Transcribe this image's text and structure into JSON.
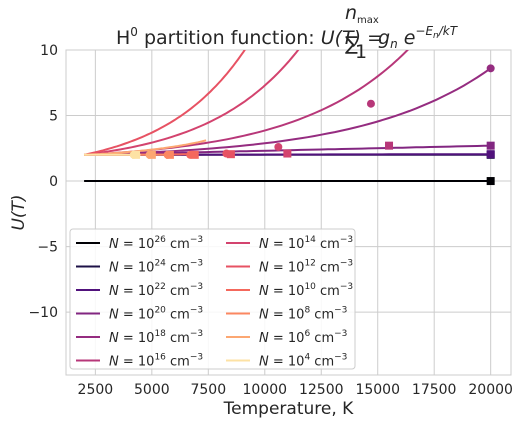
{
  "chart_data": {
    "type": "line",
    "title": "H⁰ partition function: U(T) = Σ₁^{n_max} gₙ e^{−Eₙ/kT}",
    "title_parts": {
      "prefix": "H",
      "sup": "0",
      "mid": " partition function: ",
      "lhs": "U(T) =",
      "sum": "∑",
      "sum_upper": "n",
      "sum_upper_sub": "max",
      "sum_lower": "1",
      "term": "g",
      "term_sub": "n",
      "exp_base": "e",
      "exp": "−E",
      "exp_sub": "n",
      "exp_tail": "/kT"
    },
    "xlabel": "Temperature, K",
    "ylabel": "U(T)",
    "xlim": [
      1200,
      20900
    ],
    "ylim": [
      -14.8,
      10
    ],
    "xticks": [
      2500,
      5000,
      7500,
      10000,
      12500,
      15000,
      17500,
      20000
    ],
    "yticks": [
      -10,
      -5,
      0,
      5,
      10
    ],
    "grid": true,
    "legend_position": "lower-left",
    "legend_columns": 2,
    "series": [
      {
        "name": "N = 10^26 cm^-3",
        "base": "N = 10",
        "exp": "26",
        "unit": " cm",
        "unit_exp": "−3",
        "color": "#000004",
        "x": [
          2000,
          20000
        ],
        "y": [
          0,
          0
        ],
        "marker": "square",
        "marker_x": 20000,
        "marker_y": 0,
        "end_marker": "square"
      },
      {
        "name": "N = 10^24 cm^-3",
        "base": "N = 10",
        "exp": "24",
        "unit": " cm",
        "unit_exp": "−3",
        "color": "#1d1147",
        "x": [
          2000,
          20000
        ],
        "y": [
          2.0,
          2.0
        ],
        "end_marker": "square",
        "marker_x": 20000,
        "marker_y": 2.0
      },
      {
        "name": "N = 10^22 cm^-3",
        "base": "N = 10",
        "exp": "22",
        "unit": " cm",
        "unit_exp": "−3",
        "color": "#51127c",
        "x": [
          2000,
          20000
        ],
        "y": [
          2.0,
          2.05
        ],
        "end_marker": "square",
        "marker_x": 20000,
        "marker_y": 2.05
      },
      {
        "name": "N = 10^20 cm^-3",
        "base": "N = 10",
        "exp": "20",
        "unit": " cm",
        "unit_exp": "−3",
        "color": "#822681",
        "x": [
          2000,
          20000
        ],
        "y": [
          2.0,
          2.7
        ],
        "end_marker": "square",
        "marker_x": 20000,
        "marker_y": 2.7
      },
      {
        "name": "N = 10^18 cm^-3",
        "base": "N = 10",
        "exp": "18",
        "unit": " cm",
        "unit_exp": "−3",
        "color": "#952c80",
        "x": [
          2000,
          20000
        ],
        "y": [
          2.0,
          8.6
        ],
        "end_marker": "circle",
        "marker_x": 20000,
        "marker_y": 8.6,
        "grow": 3.2
      },
      {
        "name": "N = 10^16 cm^-3",
        "base": "N = 10",
        "exp": "16",
        "unit": " cm",
        "unit_exp": "−3",
        "color": "#b73779",
        "x": [
          2000,
          16600
        ],
        "y": [
          2.0,
          10.5
        ],
        "square_x": 15500,
        "square_y": 2.7,
        "circle_x": 14700,
        "circle_y": 5.9,
        "grow": 3.0
      },
      {
        "name": "N = 10^14 cm^-3",
        "base": "N = 10",
        "exp": "14",
        "unit": " cm",
        "unit_exp": "−3",
        "color": "#d3436e",
        "x": [
          2000,
          11700
        ],
        "y": [
          2.0,
          10.5
        ],
        "square_x": 11000,
        "square_y": 2.1,
        "circle_x": 10600,
        "circle_y": 2.6,
        "grow": 2.4
      },
      {
        "name": "N = 10^12 cm^-3",
        "base": "N = 10",
        "exp": "12",
        "unit": " cm",
        "unit_exp": "−3",
        "color": "#e75263",
        "x": [
          2000,
          9300
        ],
        "y": [
          2.0,
          10.5
        ],
        "square_x": 8500,
        "square_y": 2.05,
        "circle_x": 8300,
        "circle_y": 2.1,
        "grow": 2.0
      },
      {
        "name": "N = 10^10 cm^-3",
        "base": "N = 10",
        "exp": "10",
        "unit": " cm",
        "unit_exp": "−3",
        "color": "#f4685c",
        "x": [
          2000,
          7000
        ],
        "y": [
          2.0,
          2.05
        ],
        "square_x": 6900,
        "square_y": 2.0,
        "circle_x": 6700,
        "circle_y": 2.0,
        "grow": 1.5
      },
      {
        "name": "N = 10^8 cm^-3",
        "base": "N = 10",
        "exp": "8",
        "unit": " cm",
        "unit_exp": "−3",
        "color": "#fb8761",
        "x": [
          2000,
          5900
        ],
        "y": [
          2.0,
          2.0
        ],
        "square_x": 5800,
        "square_y": 2.0,
        "circle_x": 5700,
        "circle_y": 2.0
      },
      {
        "name": "N = 10^6 cm^-3",
        "base": "N = 10",
        "exp": "6",
        "unit": " cm",
        "unit_exp": "−3",
        "color": "#fca772",
        "x": [
          2000,
          7400
        ],
        "y": [
          2.0,
          3.1
        ],
        "square_x": 5000,
        "square_y": 2.0,
        "circle_x": 4900,
        "circle_y": 2.0,
        "grow": 1.6
      },
      {
        "name": "N = 10^4 cm^-3",
        "base": "N = 10",
        "exp": "4",
        "unit": " cm",
        "unit_exp": "−3",
        "color": "#fde2a4",
        "x": [
          2000,
          4500
        ],
        "y": [
          2.0,
          2.0
        ],
        "square_x": 4300,
        "square_y": 2.0,
        "circle_x": 4200,
        "circle_y": 2.0
      }
    ]
  }
}
